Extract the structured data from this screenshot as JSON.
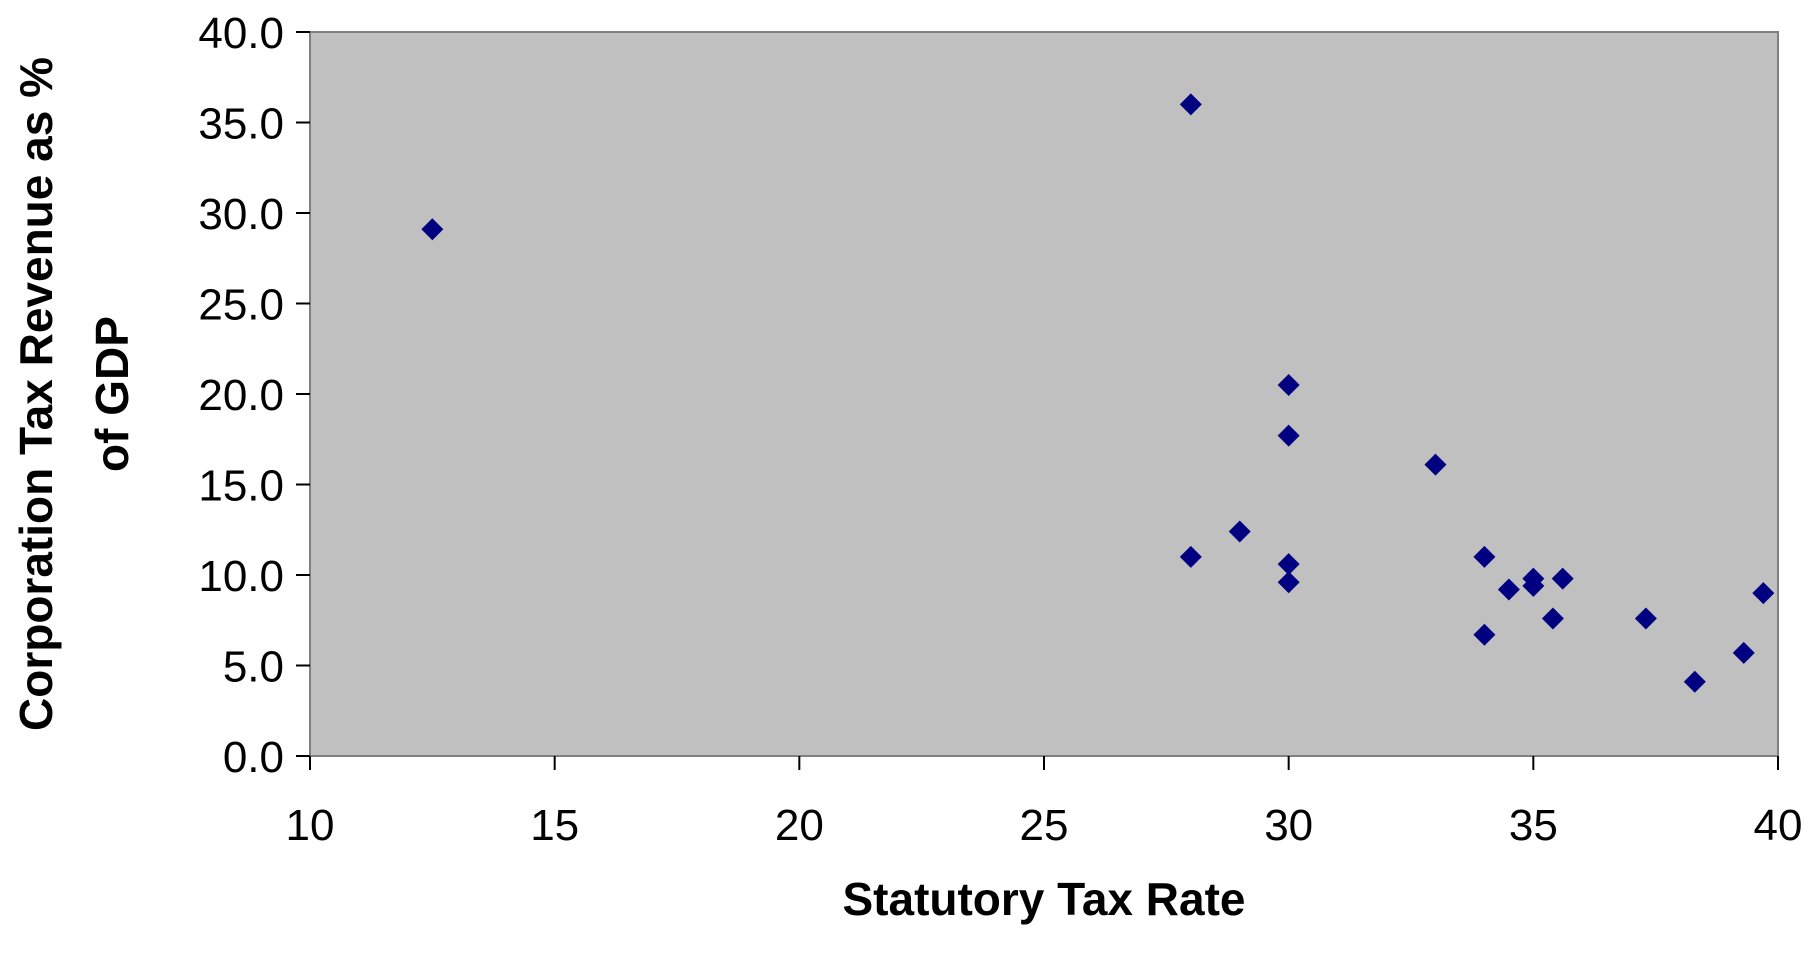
{
  "chart_data": {
    "type": "scatter",
    "title": "",
    "xlabel": "Statutory Tax Rate",
    "ylabel_lines": [
      "Corporation Tax Revenue as %",
      "of GDP"
    ],
    "xlim": [
      10,
      40
    ],
    "ylim": [
      0,
      40
    ],
    "x_ticks": [
      10,
      15,
      20,
      25,
      30,
      35,
      40
    ],
    "y_ticks": [
      0,
      5,
      10,
      15,
      20,
      25,
      30,
      35,
      40
    ],
    "x_tick_labels": [
      "10",
      "15",
      "20",
      "25",
      "30",
      "35",
      "40"
    ],
    "y_tick_labels": [
      "0.0",
      "5.0",
      "10.0",
      "15.0",
      "20.0",
      "25.0",
      "30.0",
      "35.0",
      "40.0"
    ],
    "grid": false,
    "legend": "none",
    "plot_background": "#c0c0c0",
    "marker_color": "#000080",
    "marker_shape": "diamond",
    "points": [
      {
        "x": 12.5,
        "y": 29.1
      },
      {
        "x": 28.0,
        "y": 36.0
      },
      {
        "x": 28.0,
        "y": 11.0
      },
      {
        "x": 29.0,
        "y": 12.4
      },
      {
        "x": 30.0,
        "y": 20.5
      },
      {
        "x": 30.0,
        "y": 17.7
      },
      {
        "x": 30.0,
        "y": 10.6
      },
      {
        "x": 30.0,
        "y": 9.6
      },
      {
        "x": 33.0,
        "y": 16.1
      },
      {
        "x": 34.0,
        "y": 11.0
      },
      {
        "x": 34.0,
        "y": 6.7
      },
      {
        "x": 34.5,
        "y": 9.2
      },
      {
        "x": 35.0,
        "y": 9.8
      },
      {
        "x": 35.0,
        "y": 9.4
      },
      {
        "x": 35.4,
        "y": 7.6
      },
      {
        "x": 35.6,
        "y": 9.8
      },
      {
        "x": 37.3,
        "y": 7.6
      },
      {
        "x": 38.3,
        "y": 4.1
      },
      {
        "x": 39.3,
        "y": 5.7
      },
      {
        "x": 39.7,
        "y": 9.0
      }
    ]
  }
}
